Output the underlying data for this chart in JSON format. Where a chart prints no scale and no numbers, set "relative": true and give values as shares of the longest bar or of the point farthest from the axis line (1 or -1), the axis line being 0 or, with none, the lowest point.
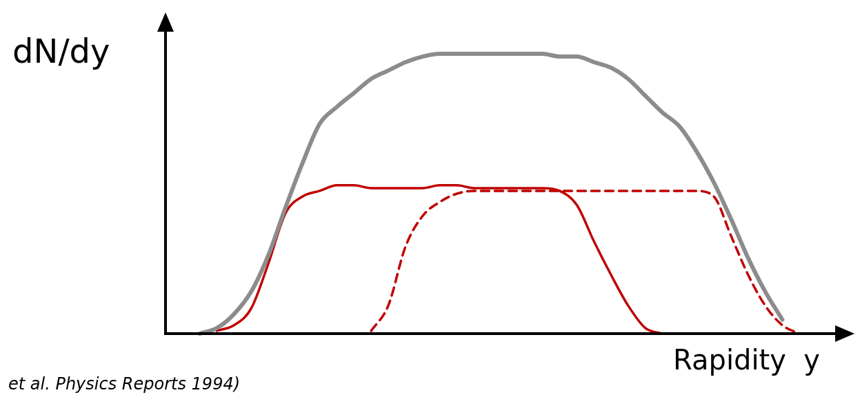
{
  "chart_data": {
    "type": "line",
    "relative": true,
    "ylabel": "dN/dy",
    "xlabel": "Rapidity  y",
    "annotations": [
      "et al. Physics Reports 1994)"
    ],
    "categories": [
      null,
      null,
      null,
      null,
      null,
      null,
      null,
      null,
      null,
      null,
      null,
      null,
      null,
      null,
      null,
      null,
      null,
      null,
      null,
      null,
      null,
      null,
      null,
      null,
      null,
      null,
      null,
      null,
      null,
      null,
      null,
      null,
      null,
      null,
      null,
      null,
      null,
      null,
      null,
      null
    ],
    "series": [
      {
        "color": "#8c8c8c",
        "line_style": "solid",
        "values": [
          null,
          null,
          0.0,
          0.02,
          0.07,
          0.15,
          0.28,
          0.45,
          0.61,
          0.75,
          0.81,
          0.86,
          0.91,
          0.94,
          0.97,
          0.99,
          1.0,
          1.0,
          1.0,
          1.0,
          1.0,
          1.0,
          1.0,
          0.99,
          0.99,
          0.97,
          0.95,
          0.91,
          0.85,
          0.79,
          0.74,
          0.65,
          0.54,
          0.41,
          0.27,
          0.15,
          0.05,
          null,
          null,
          null
        ]
      },
      {
        "color": "#c00000",
        "line_style": "solid",
        "values": [
          null,
          null,
          null,
          0.01,
          0.03,
          0.09,
          0.25,
          0.43,
          0.49,
          0.51,
          0.53,
          0.53,
          0.52,
          0.52,
          0.52,
          0.52,
          0.53,
          0.53,
          0.52,
          0.52,
          0.52,
          0.52,
          0.52,
          0.51,
          0.46,
          0.33,
          0.21,
          0.1,
          0.02,
          0.0,
          null,
          null,
          null,
          null,
          null,
          null,
          null,
          null,
          null,
          null
        ]
      },
      {
        "color": "#c00000",
        "line_style": "dashed",
        "values": [
          null,
          null,
          null,
          null,
          null,
          null,
          null,
          null,
          null,
          null,
          null,
          null,
          0.01,
          0.1,
          0.31,
          0.42,
          0.47,
          0.5,
          0.51,
          0.51,
          0.51,
          0.51,
          0.51,
          0.51,
          0.51,
          0.51,
          0.51,
          0.51,
          0.51,
          0.51,
          0.51,
          0.51,
          0.49,
          0.35,
          0.21,
          0.1,
          0.03,
          0.0,
          null,
          null
        ]
      }
    ],
    "legend": false
  }
}
